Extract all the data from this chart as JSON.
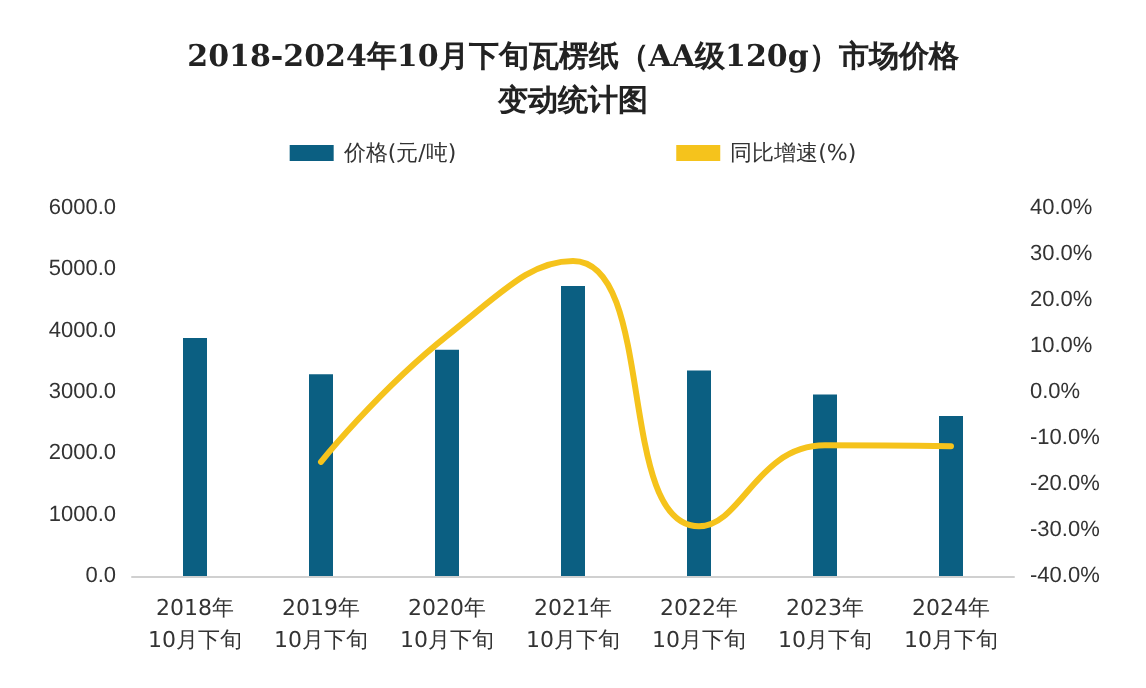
{
  "chart_data": {
    "type": "bar",
    "title": "2018-2024年10月下旬瓦楞纸（AA级120g）市场价格变动统计图",
    "categories": [
      "2018年\n10月下旬",
      "2019年\n10月下旬",
      "2020年\n10月下旬",
      "2021年\n10月下旬",
      "2022年\n10月下旬",
      "2023年\n10月下旬",
      "2024年\n10月下旬"
    ],
    "series": [
      {
        "name": "价格(元/吨)",
        "color": "#0b5f82",
        "values": [
          3880,
          3290,
          3690,
          4730,
          3350,
          2960,
          2610
        ]
      },
      {
        "name": "同比增速(%)",
        "type": "line",
        "axis": "y2",
        "color": "#f5c31c",
        "values": [
          null,
          -15.2,
          12.2,
          28.5,
          -29.2,
          -11.6,
          -11.8
        ]
      }
    ],
    "ylim": [
      0,
      6000
    ],
    "yticks": [
      {
        "value": 0,
        "label": "0.0"
      },
      {
        "value": 1000,
        "label": "1000.0"
      },
      {
        "value": 2000,
        "label": "2000.0"
      },
      {
        "value": 3000,
        "label": "3000.0"
      },
      {
        "value": 4000,
        "label": "4000.0"
      },
      {
        "value": 5000,
        "label": "5000.0"
      },
      {
        "value": 6000,
        "label": "6000.0"
      }
    ],
    "y2lim": [
      -40,
      40
    ],
    "y2ticks": [
      {
        "value": -40,
        "label": "-40.0%"
      },
      {
        "value": -30,
        "label": "-30.0%"
      },
      {
        "value": -20,
        "label": "-20.0%"
      },
      {
        "value": -10,
        "label": "-10.0%"
      },
      {
        "value": 0,
        "label": "0.0%"
      },
      {
        "value": 10,
        "label": "10.0%"
      },
      {
        "value": 20,
        "label": "20.0%"
      },
      {
        "value": 30,
        "label": "30.0%"
      },
      {
        "value": 40,
        "label": "40.0%"
      }
    ],
    "grid": false,
    "legend": "top",
    "marker": "none",
    "line_style": "solid"
  }
}
